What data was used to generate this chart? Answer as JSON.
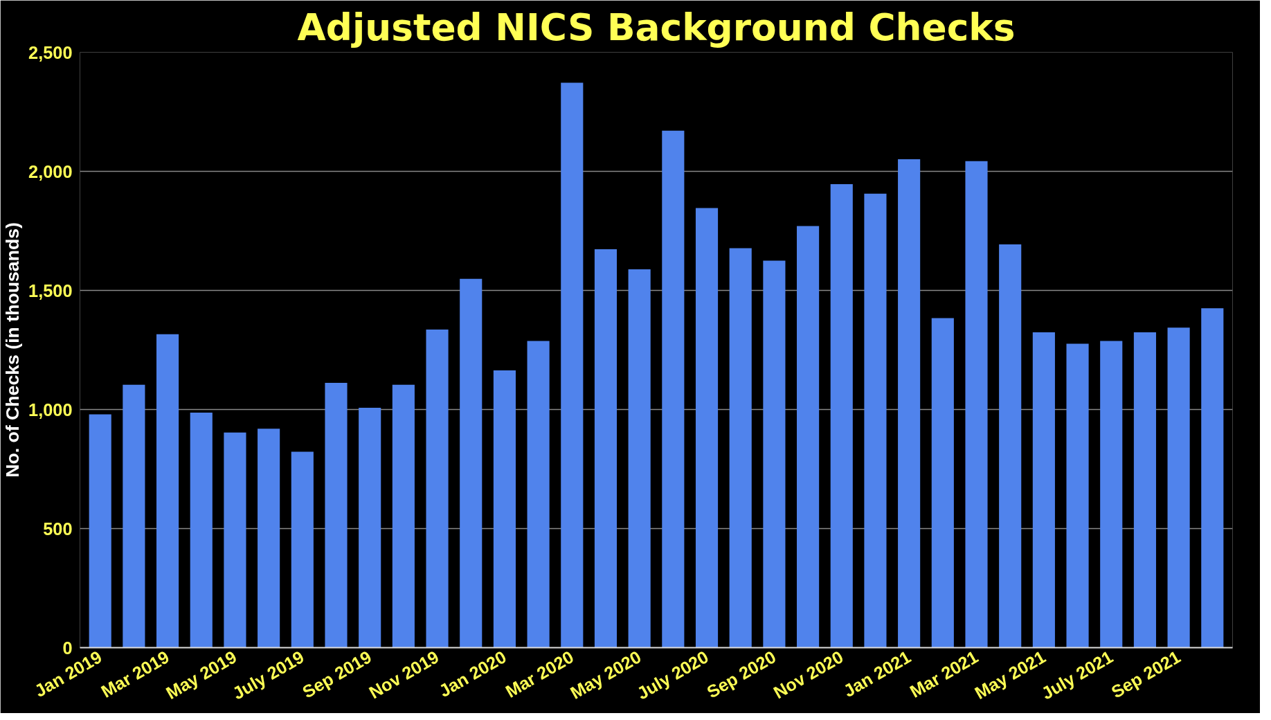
{
  "chart_data": {
    "type": "bar",
    "title": "Adjusted NICS Background Checks",
    "ylabel": "No. of Checks (in thousands)",
    "categories": [
      "Jan 2019",
      null,
      "Mar 2019",
      null,
      "May 2019",
      null,
      "July 2019",
      null,
      "Sep 2019",
      null,
      "Nov 2019",
      null,
      "Jan 2020",
      null,
      "Mar 2020",
      null,
      "May 2020",
      null,
      "July 2020",
      null,
      "Sep 2020",
      null,
      "Nov 2020",
      null,
      "Jan 2021",
      null,
      "Mar 2021",
      null,
      "May 2021",
      null,
      "July 2021",
      null,
      "Sep 2021",
      null
    ],
    "values": [
      980,
      1104,
      1316,
      987,
      903,
      919,
      823,
      1112,
      1007,
      1104,
      1336,
      1549,
      1164,
      1288,
      2372,
      1673,
      1589,
      2171,
      1846,
      1677,
      1625,
      1770,
      1946,
      1906,
      2051,
      1384,
      2043,
      1693,
      1324,
      1276,
      1288,
      1324,
      1344,
      1425
    ],
    "color": "#5083ec",
    "ylim": [
      0,
      2500
    ],
    "yticks": [
      0,
      {
        "value": 500,
        "label": "500"
      },
      {
        "value": 1000,
        "label": "1,000"
      },
      {
        "value": 1500,
        "label": "1,500"
      },
      {
        "value": 2000,
        "label": "2,000"
      },
      {
        "value": 2500,
        "label": "2,500"
      }
    ],
    "grid": "y"
  }
}
